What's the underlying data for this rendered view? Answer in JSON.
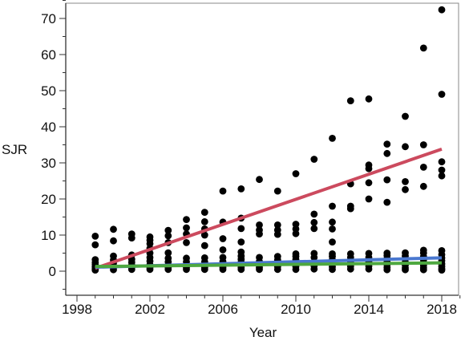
{
  "chart_data": {
    "type": "scatter",
    "title": "",
    "xlabel": "Year",
    "ylabel": "SJR",
    "xlim": [
      1998,
      2019
    ],
    "ylim": [
      -5,
      75
    ],
    "x_ticks": [
      "1998",
      "2002",
      "2006",
      "2010",
      "2014",
      "2018"
    ],
    "y_ticks": [
      "0",
      "10",
      "20",
      "30",
      "40",
      "50",
      "60",
      "70"
    ],
    "grid": false,
    "legend": "none",
    "colors": {
      "points": "#000000",
      "axis": "#333333",
      "frame": "#888888"
    },
    "series": [
      {
        "kind": "points",
        "x": [
          1999,
          1999,
          1999,
          1999,
          1999,
          1999,
          1999,
          1999,
          1999,
          2000,
          2000,
          2000,
          2000,
          2000,
          2000,
          2000,
          2000,
          2001,
          2001,
          2001,
          2001,
          2001,
          2001,
          2001,
          2001,
          2002,
          2002,
          2002,
          2002,
          2002,
          2002,
          2002,
          2002,
          2002,
          2002,
          2003,
          2003,
          2003,
          2003,
          2003,
          2003,
          2003,
          2003,
          2003,
          2004,
          2004,
          2004,
          2004,
          2004,
          2004,
          2004,
          2004,
          2004,
          2005,
          2005,
          2005,
          2005,
          2005,
          2005,
          2005,
          2005,
          2005,
          2005,
          2006,
          2006,
          2006,
          2006,
          2006,
          2006,
          2006,
          2006,
          2006,
          2007,
          2007,
          2007,
          2007,
          2007,
          2007,
          2007,
          2007,
          2007,
          2007,
          2007,
          2008,
          2008,
          2008,
          2008,
          2008,
          2008,
          2008,
          2008,
          2008,
          2009,
          2009,
          2009,
          2009,
          2009,
          2009,
          2009,
          2009,
          2009,
          2010,
          2010,
          2010,
          2010,
          2010,
          2010,
          2010,
          2010,
          2010,
          2010,
          2011,
          2011,
          2011,
          2011,
          2011,
          2011,
          2011,
          2011,
          2011,
          2012,
          2012,
          2012,
          2012,
          2012,
          2012,
          2012,
          2012,
          2012,
          2012,
          2012,
          2013,
          2013,
          2013,
          2013,
          2013,
          2013,
          2013,
          2013,
          2013,
          2014,
          2014,
          2014,
          2014,
          2014,
          2014,
          2014,
          2014,
          2014,
          2014,
          2015,
          2015,
          2015,
          2015,
          2015,
          2015,
          2015,
          2015,
          2015,
          2015,
          2015,
          2016,
          2016,
          2016,
          2016,
          2016,
          2016,
          2016,
          2016,
          2016,
          2016,
          2016,
          2017,
          2017,
          2017,
          2017,
          2017,
          2017,
          2017,
          2017,
          2017,
          2017,
          2017,
          2017,
          2018,
          2018,
          2018,
          2018,
          2018,
          2018,
          2018,
          2018,
          2018,
          2018,
          2018,
          2018,
          2018
        ],
        "y": [
          9.7,
          7.3,
          3.2,
          2.4,
          1.8,
          1.2,
          0.8,
          0.5,
          0.3,
          11.6,
          8.4,
          4.2,
          3.1,
          2.2,
          1.5,
          0.9,
          0.4,
          10.3,
          9.2,
          4.5,
          3.3,
          2.5,
          1.7,
          1.0,
          0.5,
          9.5,
          8.6,
          7.6,
          6.3,
          5.0,
          3.8,
          2.8,
          1.8,
          1.0,
          0.5,
          11.3,
          9.8,
          7.9,
          5.1,
          3.6,
          2.6,
          1.7,
          1.0,
          0.5,
          14.3,
          12.0,
          10.3,
          7.9,
          3.6,
          2.6,
          1.8,
          1.0,
          0.5,
          16.3,
          13.7,
          11.7,
          10.0,
          7.1,
          3.7,
          2.6,
          1.7,
          1.0,
          0.5,
          22.2,
          13.6,
          9.0,
          5.9,
          3.8,
          2.7,
          1.9,
          1.0,
          0.5,
          22.8,
          14.7,
          11.8,
          8.1,
          5.3,
          4.2,
          3.3,
          2.5,
          1.8,
          1.0,
          0.5,
          25.4,
          12.8,
          11.4,
          10.3,
          3.8,
          2.7,
          1.9,
          1.0,
          0.5,
          22.2,
          12.8,
          11.4,
          10.2,
          4.1,
          3.1,
          2.2,
          1.3,
          0.5,
          27.0,
          13.0,
          11.7,
          10.4,
          4.8,
          4.1,
          3.2,
          2.3,
          1.3,
          0.5,
          31.0,
          15.8,
          13.5,
          11.8,
          4.9,
          3.8,
          2.6,
          1.5,
          0.6,
          36.8,
          18.0,
          13.6,
          11.7,
          8.1,
          4.8,
          4.1,
          3.1,
          2.1,
          1.2,
          0.5,
          47.2,
          24.2,
          18.0,
          17.3,
          4.8,
          3.8,
          2.6,
          1.4,
          0.6,
          47.7,
          29.4,
          28.4,
          24.5,
          20.0,
          4.9,
          3.8,
          2.6,
          1.4,
          0.6,
          35.2,
          32.6,
          25.3,
          19.1,
          5.0,
          4.3,
          3.5,
          2.6,
          1.8,
          1.0,
          0.4,
          42.9,
          34.5,
          24.8,
          22.6,
          5.1,
          4.2,
          3.4,
          2.5,
          1.7,
          0.9,
          0.4,
          61.8,
          35.0,
          28.8,
          23.5,
          5.8,
          5.0,
          4.0,
          3.2,
          2.4,
          1.6,
          0.9,
          0.4,
          72.4,
          49.0,
          30.3,
          28.0,
          26.4,
          5.7,
          4.6,
          3.7,
          2.9,
          2.0,
          1.3,
          0.7,
          0.3
        ]
      },
      {
        "kind": "fit",
        "color": "#cc4a5e",
        "x": [
          1999,
          2018
        ],
        "y": [
          0.8,
          33.8
        ]
      },
      {
        "kind": "fit",
        "color": "#4a78d0",
        "x": [
          1999,
          2018
        ],
        "y": [
          1.1,
          3.7
        ]
      },
      {
        "kind": "fit",
        "color": "#4ea840",
        "x": [
          1999,
          2018
        ],
        "y": [
          1.3,
          2.3
        ]
      }
    ]
  }
}
